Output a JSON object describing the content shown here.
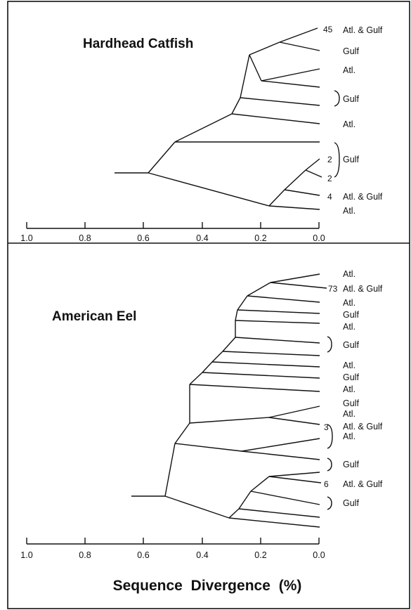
{
  "panels": [
    {
      "id": "catfish",
      "title": "Hardhead Catfish",
      "leaf_labels": [
        "Atl. & Gulf",
        "Gulf",
        "Atl.",
        "Gulf",
        "Atl.",
        "Gulf",
        "Atl. & Gulf",
        "Atl."
      ],
      "counts": [
        "45",
        "2",
        "2",
        "4"
      ],
      "axis_ticks": [
        "1.0",
        "0.8",
        "0.6",
        "0.4",
        "0.2",
        "0.0"
      ]
    },
    {
      "id": "eel",
      "title": "American Eel",
      "leaf_labels": [
        "Atl.",
        "Atl. & Gulf",
        "Atl.",
        "Gulf",
        "Atl.",
        "Gulf",
        "Atl.",
        "Gulf",
        "Atl.",
        "Gulf",
        "Atl.",
        "Atl. & Gulf",
        "Atl.",
        "Gulf",
        "Atl. & Gulf",
        "Gulf"
      ],
      "counts": [
        "73",
        "3",
        "6"
      ],
      "axis_ticks": [
        "1.0",
        "0.8",
        "0.6",
        "0.4",
        "0.2",
        "0.0"
      ]
    }
  ],
  "axis_title": "Sequence Divergence (%)",
  "colors": {
    "ink": "#111111",
    "background": "#ffffff"
  }
}
